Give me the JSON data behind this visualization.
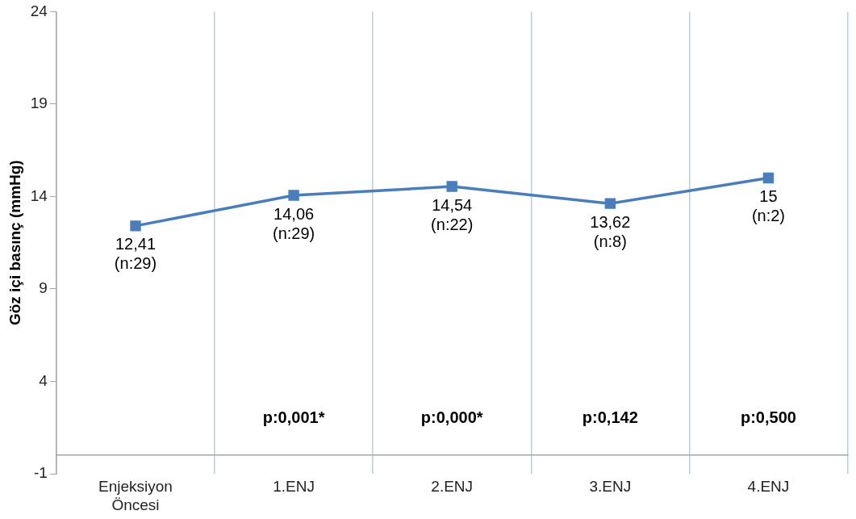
{
  "chart_data": {
    "type": "line",
    "ylabel": "Göz içi basınç (mmHg)",
    "categories": [
      "Enjeksiyon Öncesi",
      "1.ENJ",
      "2.ENJ",
      "3.ENJ",
      "4.ENJ"
    ],
    "series": [
      {
        "color": "#4a7ebb",
        "values": [
          12.41,
          14.06,
          14.54,
          13.62,
          15
        ],
        "value_labels": [
          "12,41\n(n:29)",
          "14,06\n(n:29)",
          "14,54\n(n:22)",
          "13,62\n(n:8)",
          "15\n(n:2)"
        ]
      }
    ],
    "ylim": [
      -1,
      24
    ],
    "yticks": [
      -1,
      4,
      9,
      14,
      19,
      24
    ],
    "grid": "x",
    "marker": "square",
    "line_style": "solid",
    "legend": false,
    "annotations": [
      "p:0,001*",
      "p:0,000*",
      "p:0,142",
      "p:0,500"
    ]
  }
}
